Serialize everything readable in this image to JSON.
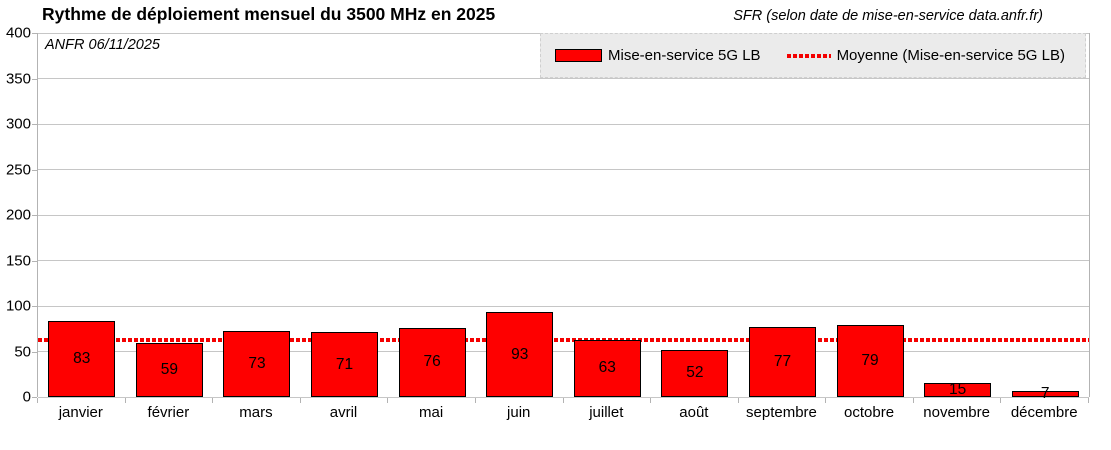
{
  "header": {
    "title": "Rythme de déploiement mensuel du 3500 MHz en 2025",
    "subtitle": "SFR (selon date de mise-en-service data.anfr.fr)",
    "annotation": "ANFR 06/11/2025"
  },
  "legend": {
    "series_label": "Mise-en-service 5G LB",
    "average_label": "Moyenne (Mise-en-service 5G LB)"
  },
  "colors": {
    "bar_fill": "#fe0000",
    "bar_border": "#000000",
    "average_line": "#f40000",
    "grid": "#c6c6c6",
    "axis": "#b3b3b3",
    "legend_bg": "#ebebeb"
  },
  "chart_data": {
    "type": "bar",
    "title": "Rythme de déploiement mensuel du 3500 MHz en 2025",
    "subtitle": "SFR (selon date de mise-en-service data.anfr.fr)",
    "categories": [
      "janvier",
      "février",
      "mars",
      "avril",
      "mai",
      "juin",
      "juillet",
      "août",
      "septembre",
      "octobre",
      "novembre",
      "décembre"
    ],
    "series": [
      {
        "name": "Mise-en-service 5G LB",
        "values": [
          83,
          59,
          73,
          71,
          76,
          93,
          63,
          52,
          77,
          79,
          15,
          7
        ]
      }
    ],
    "average_line": {
      "name": "Moyenne (Mise-en-service 5G LB)",
      "value": 62.3
    },
    "bar_labels": true,
    "xlabel": "",
    "ylabel": "",
    "ylim": [
      0,
      400
    ],
    "yticks": [
      0,
      50,
      100,
      150,
      200,
      250,
      300,
      350,
      400
    ],
    "grid": true,
    "legend_position": "top-right"
  }
}
